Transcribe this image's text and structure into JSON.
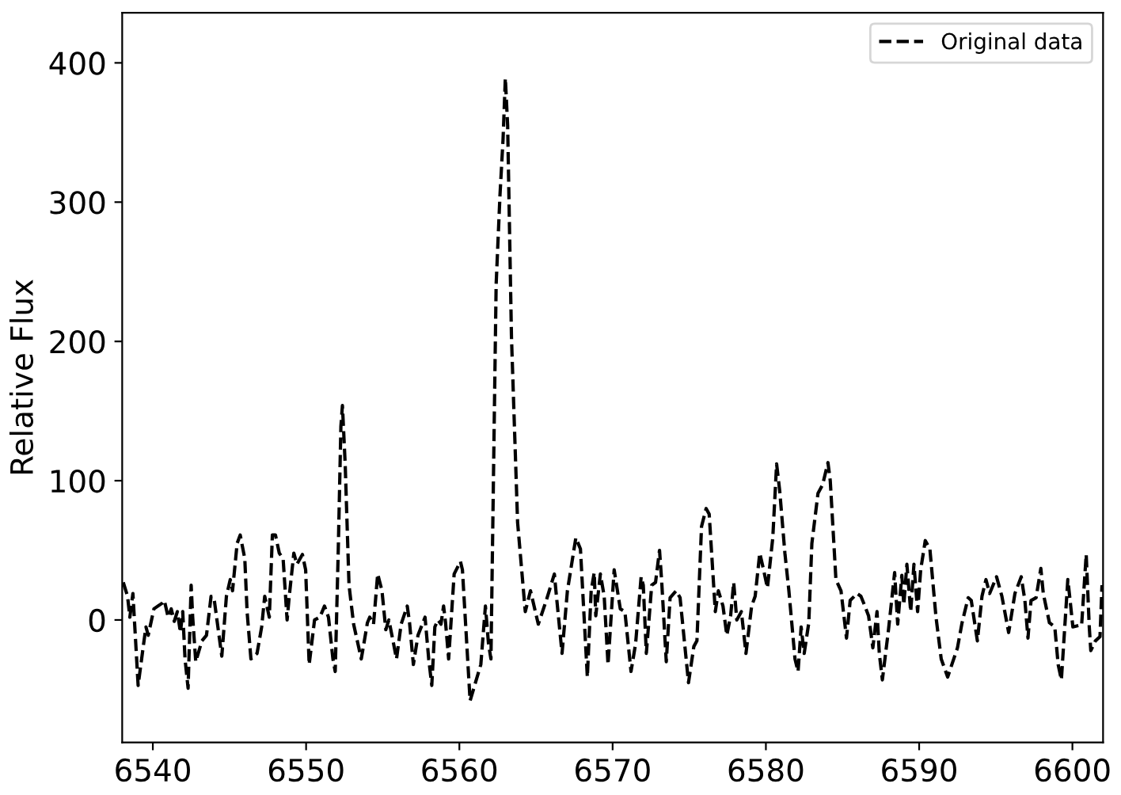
{
  "chart_data": {
    "type": "line",
    "ylabel": "Relative Flux",
    "xlim": [
      6538,
      6602
    ],
    "xticks": [
      6540,
      6550,
      6560,
      6570,
      6580,
      6590,
      6600
    ],
    "ylim": [
      -88,
      436
    ],
    "yticks": [
      0,
      100,
      200,
      300,
      400
    ],
    "legend": "top right",
    "line_style": "dashed",
    "series": [
      {
        "name": "Original data",
        "color": "#000000",
        "x": [
          6538.07,
          6538.35,
          6538.5,
          6538.7,
          6539.04,
          6539.4,
          6539.55,
          6539.7,
          6540.07,
          6540.6,
          6540.75,
          6541.0,
          6541.2,
          6541.4,
          6541.6,
          6541.8,
          6541.95,
          6542.1,
          6542.3,
          6542.5,
          6542.6,
          6542.8,
          6543.2,
          6543.5,
          6543.8,
          6544.0,
          6544.5,
          6544.8,
          6545.05,
          6545.2,
          6545.5,
          6545.7,
          6546.0,
          6546.15,
          6546.4,
          6546.8,
          6547.1,
          6547.3,
          6547.6,
          6547.8,
          6548.0,
          6548.25,
          6548.5,
          6548.76,
          6548.9,
          6549.2,
          6549.4,
          6549.76,
          6549.97,
          6550.2,
          6550.55,
          6550.9,
          6551.2,
          6551.46,
          6551.75,
          6551.9,
          6552.1,
          6552.27,
          6552.37,
          6552.55,
          6552.8,
          6553.1,
          6553.6,
          6554.0,
          6554.15,
          6554.4,
          6554.67,
          6554.95,
          6555.2,
          6555.4,
          6555.6,
          6555.9,
          6556.2,
          6556.6,
          6556.75,
          6557.0,
          6557.3,
          6557.76,
          6558.0,
          6558.2,
          6558.4,
          6558.6,
          6558.8,
          6558.97,
          6559.1,
          6559.3,
          6559.66,
          6560.07,
          6560.2,
          6560.7,
          6561.4,
          6561.7,
          6561.9,
          6562.06,
          6562.4,
          6562.65,
          6562.85,
          6563.0,
          6563.15,
          6563.4,
          6563.8,
          6564.3,
          6564.64,
          6565.15,
          6565.67,
          6566.2,
          6566.3,
          6566.7,
          6567.05,
          6567.6,
          6567.9,
          6568.35,
          6568.6,
          6568.8,
          6568.9,
          6569.2,
          6569.45,
          6569.7,
          6570.1,
          6570.5,
          6570.8,
          6571.2,
          6571.5,
          6571.86,
          6572.0,
          6572.2,
          6572.55,
          6572.8,
          6573.06,
          6573.2,
          6573.5,
          6573.75,
          6574.15,
          6574.4,
          6574.95,
          6575.3,
          6575.5,
          6575.8,
          6576.1,
          6576.3,
          6576.7,
          6576.9,
          6577.2,
          6577.45,
          6577.7,
          6577.9,
          6578.1,
          6578.4,
          6578.7,
          6579.07,
          6579.3,
          6579.6,
          6579.85,
          6580.1,
          6580.45,
          6580.7,
          6580.9,
          6581.24,
          6581.5,
          6581.9,
          6582.1,
          6582.3,
          6582.5,
          6582.8,
          6583.0,
          6583.4,
          6583.7,
          6584.05,
          6584.2,
          6584.57,
          6584.9,
          6585.26,
          6585.5,
          6585.95,
          6586.2,
          6586.46,
          6586.7,
          6586.98,
          6587.25,
          6587.4,
          6587.6,
          6588.0,
          6588.4,
          6588.6,
          6588.87,
          6589.0,
          6589.2,
          6589.45,
          6589.66,
          6589.9,
          6590.1,
          6590.4,
          6590.7,
          6591.1,
          6591.44,
          6591.86,
          6592.5,
          6592.8,
          6593.2,
          6593.4,
          6593.8,
          6594.1,
          6594.36,
          6594.6,
          6595.05,
          6595.4,
          6595.84,
          6596.25,
          6596.66,
          6596.9,
          6597.1,
          6597.3,
          6597.63,
          6597.94,
          6598.1,
          6598.5,
          6598.85,
          6599.07,
          6599.28,
          6599.7,
          6599.85,
          6600.03,
          6600.4,
          6600.6,
          6600.9,
          6601.1,
          6601.2,
          6601.5,
          6601.8,
          6601.93
        ],
        "values": [
          27,
          17,
          2,
          19,
          -47,
          -17,
          -5,
          -11,
          8,
          12,
          14,
          2,
          8,
          -1,
          6,
          -9,
          6,
          -28,
          -49,
          25,
          2,
          -30,
          -15,
          -11,
          17,
          15,
          -26,
          17,
          29,
          21,
          55,
          61,
          44,
          6,
          -28,
          -24,
          -5,
          17,
          2,
          61,
          61,
          48,
          44,
          0,
          17,
          48,
          40,
          47,
          36,
          -32,
          0,
          2,
          10,
          2,
          -28,
          -37,
          51,
          139,
          154,
          112,
          25,
          -3,
          -28,
          -2,
          2,
          -3,
          33,
          21,
          -7,
          0,
          -11,
          -28,
          -3,
          10,
          -2,
          -32,
          -11,
          2,
          -28,
          -47,
          -5,
          0,
          -3,
          10,
          -2,
          -28,
          33,
          42,
          36,
          -58,
          -32,
          10,
          -17,
          -28,
          241,
          305,
          345,
          389,
          355,
          203,
          70,
          6,
          21,
          -3,
          14,
          33,
          21,
          -24,
          21,
          59,
          51,
          -41,
          21,
          34,
          3,
          33,
          17,
          -32,
          36,
          8,
          6,
          -37,
          -17,
          31,
          25,
          -24,
          25,
          27,
          50,
          28,
          -30,
          16,
          21,
          16,
          -45,
          -19,
          -15,
          67,
          80,
          76,
          6,
          21,
          10,
          -11,
          3,
          27,
          0,
          6,
          -24,
          10,
          17,
          48,
          36,
          23,
          59,
          112,
          93,
          48,
          21,
          -28,
          -37,
          -5,
          -24,
          -2,
          55,
          91,
          97,
          113,
          100,
          29,
          21,
          -13,
          14,
          19,
          17,
          10,
          3,
          -20,
          6,
          -24,
          -43,
          -7,
          34,
          -3,
          32,
          11,
          40,
          6,
          40,
          6,
          36,
          57,
          51,
          2,
          -28,
          -41,
          -20,
          -2,
          16,
          14,
          -15,
          17,
          29,
          19,
          31,
          17,
          -9,
          19,
          31,
          14,
          -13,
          14,
          16,
          37,
          19,
          -2,
          -5,
          -32,
          -43,
          29,
          14,
          -5,
          -4,
          -4,
          47,
          -5,
          -22,
          -15,
          -12,
          25
        ]
      }
    ]
  }
}
